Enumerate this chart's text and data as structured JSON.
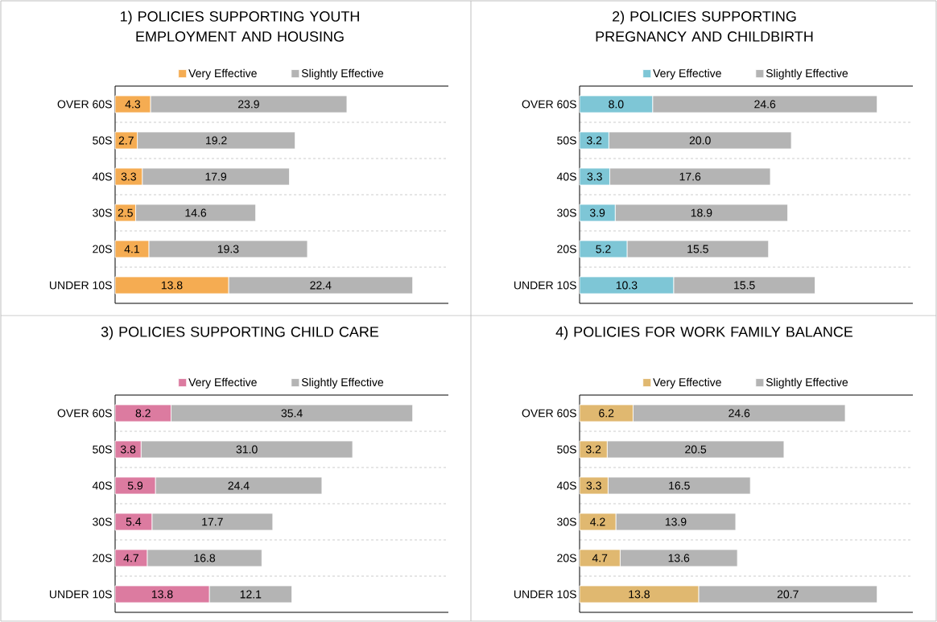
{
  "chart_data": [
    {
      "type": "bar",
      "orientation": "horizontal",
      "stacked": true,
      "legend": "top",
      "grid": "y",
      "title": "1) POLICIES SUPPORTING YOUTH EMPLOYMENT AND HOUSING",
      "categories": [
        "OVER 60S",
        "50S",
        "40S",
        "30S",
        "20S",
        "UNDER 10S"
      ],
      "series": [
        {
          "name": "Very Effective",
          "color": "#f5ac52",
          "values": [
            4.3,
            2.7,
            3.3,
            2.5,
            4.1,
            13.8
          ],
          "value_labels": [
            "4.3",
            "2.7",
            "3.3",
            "2.5",
            "4.1",
            "13.8"
          ]
        },
        {
          "name": "Slightly Effective",
          "color": "#b4b4b4",
          "values": [
            23.9,
            19.2,
            17.9,
            14.6,
            19.3,
            22.4
          ],
          "value_labels": [
            "23.9",
            "19.2",
            "17.9",
            "14.6",
            "19.3",
            "22.4"
          ]
        }
      ]
    },
    {
      "type": "bar",
      "orientation": "horizontal",
      "stacked": true,
      "legend": "top",
      "grid": "y",
      "title": "2) POLICIES SUPPORTING PREGNANCY AND CHILDBIRTH",
      "categories": [
        "OVER 60S",
        "50S",
        "40S",
        "30S",
        "20S",
        "UNDER 10S"
      ],
      "series": [
        {
          "name": "Very Effective",
          "color": "#7ec6d6",
          "values": [
            8.0,
            3.2,
            3.3,
            3.9,
            5.2,
            10.3
          ],
          "value_labels": [
            "8.0",
            "3.2",
            "3.3",
            "3.9",
            "5.2",
            "10.3"
          ]
        },
        {
          "name": "Slightly Effective",
          "color": "#b4b4b4",
          "values": [
            24.6,
            20.0,
            17.6,
            18.9,
            15.5,
            15.5
          ],
          "value_labels": [
            "24.6",
            "20.0",
            "17.6",
            "18.9",
            "15.5",
            "15.5"
          ]
        }
      ]
    },
    {
      "type": "bar",
      "orientation": "horizontal",
      "stacked": true,
      "legend": "top",
      "grid": "y",
      "title": "3) POLICIES SUPPORTING CHILD CARE",
      "categories": [
        "OVER 60S",
        "50S",
        "40S",
        "30S",
        "20S",
        "UNDER 10S"
      ],
      "series": [
        {
          "name": "Very Effective",
          "color": "#dc7ba0",
          "values": [
            8.2,
            3.8,
            5.9,
            5.4,
            4.7,
            13.8
          ],
          "value_labels": [
            "8.2",
            "3.8",
            "5.9",
            "5.4",
            "4.7",
            "13.8"
          ]
        },
        {
          "name": "Slightly Effective",
          "color": "#b4b4b4",
          "values": [
            35.4,
            31.0,
            24.4,
            17.7,
            16.8,
            12.1
          ],
          "value_labels": [
            "35.4",
            "31.0",
            "24.4",
            "17.7",
            "16.8",
            "12.1"
          ]
        }
      ]
    },
    {
      "type": "bar",
      "orientation": "horizontal",
      "stacked": true,
      "legend": "top",
      "grid": "y",
      "title": "4) POLICIES FOR WORK FAMILY BALANCE",
      "categories": [
        "OVER 60S",
        "50S",
        "40S",
        "30S",
        "20S",
        "UNDER 10S"
      ],
      "series": [
        {
          "name": "Very Effective",
          "color": "#e0b870",
          "values": [
            6.2,
            3.2,
            3.3,
            4.2,
            4.7,
            13.8
          ],
          "value_labels": [
            "6.2",
            "3.2",
            "3.3",
            "4.2",
            "4.7",
            "13.8"
          ]
        },
        {
          "name": "Slightly Effective",
          "color": "#b4b4b4",
          "values": [
            24.6,
            20.5,
            16.5,
            13.9,
            13.6,
            20.7
          ],
          "value_labels": [
            "24.6",
            "20.5",
            "16.5",
            "13.9",
            "13.6",
            "20.7"
          ]
        }
      ]
    }
  ]
}
